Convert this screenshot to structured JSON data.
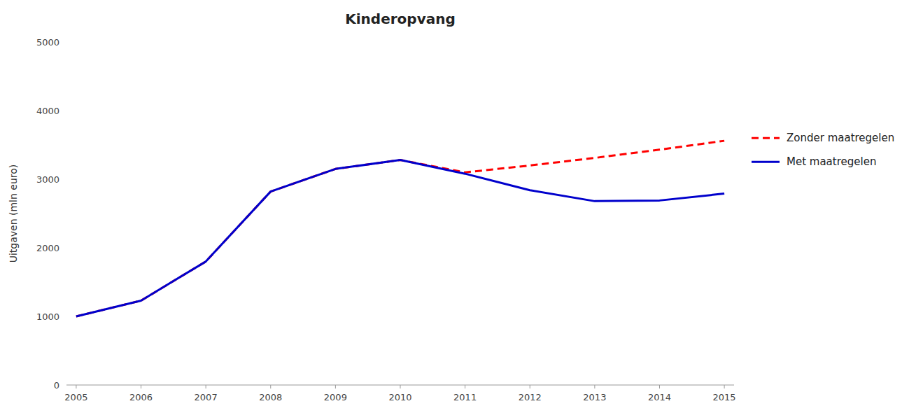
{
  "chart_data": {
    "type": "line",
    "title": "Kinderopvang",
    "y_label": "Uitgaven (mln euro)",
    "x": [
      2005,
      2006,
      2007,
      2008,
      2009,
      2010,
      2011,
      2012,
      2013,
      2014,
      2015
    ],
    "series": [
      {
        "name": "Zonder maatregelen",
        "color": "#FF0000",
        "line_style": "dashed",
        "values": [
          1000,
          1230,
          1800,
          2820,
          3150,
          3280,
          3100,
          3200,
          3310,
          3430,
          3560
        ]
      },
      {
        "name": "Met maatregelen",
        "color": "#0000CC",
        "line_style": "solid",
        "values": [
          1000,
          1230,
          1800,
          2820,
          3150,
          3280,
          3080,
          2840,
          2680,
          2690,
          2790
        ]
      }
    ],
    "xlim": [
      2004.85,
      2015.15
    ],
    "xticks": [
      2005,
      2006,
      2007,
      2008,
      2009,
      2010,
      2011,
      2012,
      2013,
      2014,
      2015
    ],
    "ylim": [
      0,
      5000
    ],
    "yticks": [
      0,
      1000,
      2000,
      3000,
      4000,
      5000
    ],
    "grid": false,
    "legend": "right"
  }
}
